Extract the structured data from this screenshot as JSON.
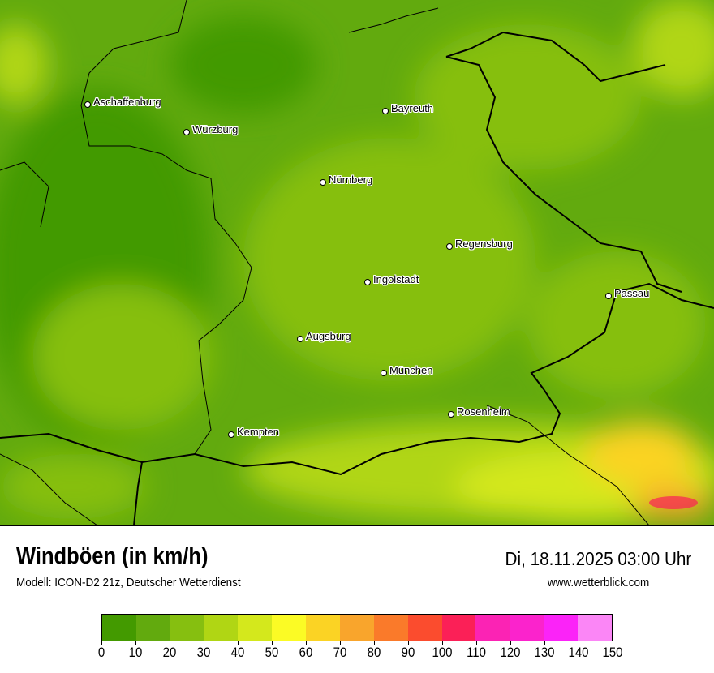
{
  "header": {
    "title": "Windböen (in km/h)",
    "subtitle": "Modell: ICON-D2 21z, Deutscher Wetterdienst",
    "datetime": "Di, 18.11.2025 03:00 Uhr",
    "website": "www.wetterblick.com"
  },
  "map": {
    "cities": [
      {
        "name": "Aschaffenburg"
      },
      {
        "name": "Würzburg"
      },
      {
        "name": "Bayreuth"
      },
      {
        "name": "Nürnberg"
      },
      {
        "name": "Regensburg"
      },
      {
        "name": "Ingolstadt"
      },
      {
        "name": "Passau"
      },
      {
        "name": "Augsburg"
      },
      {
        "name": "München"
      },
      {
        "name": "Rosenheim"
      },
      {
        "name": "Kempten"
      }
    ]
  },
  "legend": {
    "unit": "km/h",
    "ticks": [
      "0",
      "10",
      "20",
      "30",
      "40",
      "50",
      "60",
      "70",
      "80",
      "90",
      "100",
      "110",
      "120",
      "130",
      "140",
      "150"
    ],
    "colors": [
      "#439a00",
      "#62aa0e",
      "#86bf10",
      "#b0d614",
      "#d4e81c",
      "#fbfb25",
      "#fbd324",
      "#f9a52c",
      "#fa7a2a",
      "#fb4c2e",
      "#fb2057",
      "#fb23b4",
      "#fb23cc",
      "#fb23f8",
      "#fb86f6"
    ]
  }
}
